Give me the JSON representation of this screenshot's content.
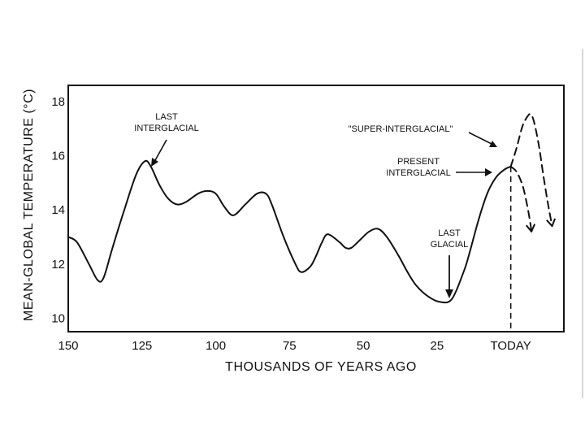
{
  "chart_data": {
    "type": "line",
    "xlabel": "THOUSANDS OF YEARS AGO",
    "ylabel": "MEAN-GLOBAL TEMPERATURE (°C)",
    "xlim": [
      150,
      -18
    ],
    "ylim": [
      9.5,
      18.6
    ],
    "x_tick_labels": [
      {
        "x": 150,
        "label": "150"
      },
      {
        "x": 125,
        "label": "125"
      },
      {
        "x": 100,
        "label": "100"
      },
      {
        "x": 75,
        "label": "75"
      },
      {
        "x": 50,
        "label": "50"
      },
      {
        "x": 25,
        "label": "25"
      },
      {
        "x": 0,
        "label": "TODAY"
      }
    ],
    "y_ticks": [
      10,
      12,
      14,
      16,
      18
    ],
    "grid": false,
    "series": [
      {
        "style": "solid",
        "x": [
          150,
          147,
          143,
          140,
          138,
          135,
          131,
          127,
          124,
          122,
          119,
          116,
          113,
          110,
          106,
          103,
          100,
          97,
          94,
          90,
          86,
          83,
          81,
          77,
          73,
          71,
          68,
          66,
          64,
          62,
          58,
          56,
          54,
          51,
          48,
          45,
          42,
          38,
          35,
          32,
          28,
          24,
          20,
          16,
          14,
          11,
          8,
          5,
          2,
          0
        ],
        "y": [
          13.0,
          12.8,
          12.0,
          11.4,
          11.5,
          12.6,
          14.0,
          15.3,
          15.8,
          15.6,
          14.9,
          14.4,
          14.2,
          14.3,
          14.6,
          14.7,
          14.6,
          14.1,
          13.8,
          14.2,
          14.6,
          14.6,
          14.2,
          13.0,
          12.0,
          11.7,
          11.9,
          12.3,
          12.8,
          13.1,
          12.8,
          12.6,
          12.6,
          12.9,
          13.2,
          13.3,
          13.0,
          12.3,
          11.7,
          11.2,
          10.8,
          10.6,
          10.7,
          11.7,
          12.4,
          13.6,
          14.6,
          15.2,
          15.5,
          15.6
        ]
      },
      {
        "style": "dashed",
        "x": [
          0,
          -2,
          -4,
          -6,
          -7,
          -8,
          -9.5,
          -11,
          -12.5,
          -14
        ],
        "y": [
          15.6,
          16.3,
          17.1,
          17.5,
          17.5,
          17.2,
          16.4,
          15.3,
          14.3,
          13.4
        ]
      },
      {
        "style": "dashed",
        "x": [
          0,
          -2,
          -4,
          -5.5,
          -6.5,
          -7
        ],
        "y": [
          15.6,
          15.4,
          14.9,
          14.2,
          13.6,
          13.2
        ]
      }
    ],
    "today_line": {
      "x": 0,
      "style": "dashed"
    },
    "annotations": [
      {
        "lines": [
          "LAST",
          "INTERGLACIAL"
        ]
      },
      {
        "lines": [
          "\"SUPER-INTERGLACIAL\""
        ]
      },
      {
        "lines": [
          "PRESENT",
          "INTERGLACIAL"
        ]
      },
      {
        "lines": [
          "LAST",
          "GLACIAL"
        ]
      }
    ]
  }
}
